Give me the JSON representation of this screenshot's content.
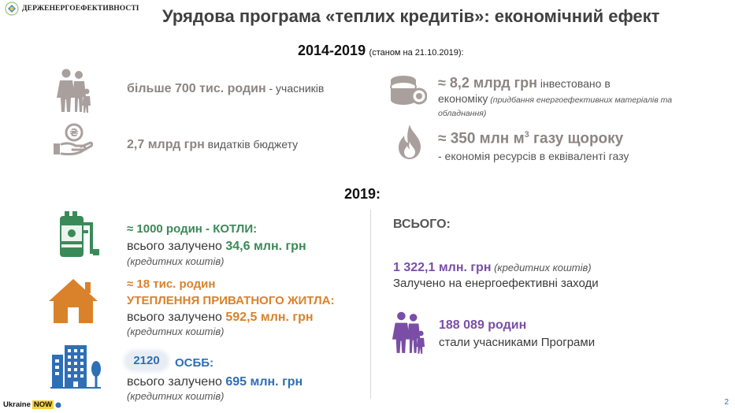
{
  "header": {
    "logo_text": "ДЕРЖЕНЕРГОЕФЕКТИВНОСТІ",
    "title": "Урядова програма «теплих кредитів»: економічний ефект"
  },
  "period_1": {
    "years": "2014-2019",
    "note": "(станом на 21.10.2019):"
  },
  "stats_top": {
    "families": {
      "value": "більше 700 тис. родин",
      "text": " - учасників"
    },
    "budget": {
      "value": "2,7 млрд грн",
      "text": " видатків бюджету"
    },
    "invested": {
      "value": "≈ 8,2 млрд грн",
      "text_1": " інвестовано в",
      "text_2": "економіку",
      "note_1": " (придбання енергоефективних матеріалів та",
      "note_2": "обладнання)"
    },
    "gas": {
      "value": "≈ 350 млн м",
      "sup": "3",
      "value_tail": " газу щороку",
      "text": "- економія ресурсів в еквіваленті газу"
    }
  },
  "period_2": {
    "year": "2019:"
  },
  "programs": {
    "boilers": {
      "headline": "≈ 1000 родин - КОТЛИ:",
      "lead": "всього залучено ",
      "amount": "34,6 млн. грн",
      "note": "(кредитних коштів)"
    },
    "insulation": {
      "headline_1": "≈ 18 тис. родин",
      "headline_2": "УТЕПЛЕННЯ ПРИВАТНОГО ЖИТЛА:",
      "lead": "всього залучено ",
      "amount": "592,5 млн. грн",
      "note": "(кредитних коштів)"
    },
    "osbb": {
      "count": "2120",
      "headline": "ОСББ:",
      "lead": "всього залучено ",
      "amount": "695 млн. грн",
      "note": "(кредитних коштів)"
    }
  },
  "totals": {
    "label": "ВСЬОГО:",
    "amount": "1 322,1 млн. грн",
    "amount_note": " (кредитних коштів)",
    "amount_text": "Залучено на енергоефективні заходи",
    "families": "188 089 родин",
    "families_text": "стали учасниками Програми"
  },
  "footer": {
    "brand_1": "Ukraine",
    "brand_2": "NOW",
    "page": "2"
  },
  "colors": {
    "green": "#3a8a58",
    "orange": "#d9822b",
    "blue": "#2e6fb5",
    "purple": "#7a4ea6",
    "gray": "#8c8583"
  }
}
